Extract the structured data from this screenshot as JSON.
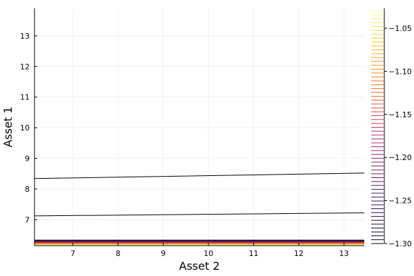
{
  "chart_data": {
    "type": "contour",
    "title": "",
    "xlabel": "Asset 2",
    "ylabel": "Asset 1",
    "xlim": [
      6.15,
      13.45
    ],
    "ylim": [
      6.15,
      13.9
    ],
    "xticks": [
      7,
      8,
      9,
      10,
      11,
      12,
      13
    ],
    "yticks": [
      7,
      8,
      9,
      10,
      11,
      12,
      13
    ],
    "grid": true,
    "colormap": "inferno",
    "colorbar": {
      "range": [
        -1.3,
        -1.03
      ],
      "ticks": [
        -1.05,
        -1.1,
        -1.15,
        -1.2,
        -1.25,
        -1.3
      ],
      "tick_labels": [
        "−1.05",
        "−1.10",
        "−1.15",
        "−1.20",
        "−1.25",
        "−1.30"
      ]
    },
    "contour_lines": [
      {
        "level": -1.3,
        "points": [
          [
            6.15,
            8.34
          ],
          [
            13.45,
            8.52
          ]
        ],
        "color": "#000000"
      },
      {
        "level": -1.3,
        "points": [
          [
            6.15,
            7.12
          ],
          [
            13.45,
            7.22
          ]
        ],
        "color": "#000000"
      }
    ],
    "bottom_band_colors": [
      "#000004",
      "#280b54",
      "#65156e",
      "#9f2a63",
      "#d44842",
      "#f57d15",
      "#fac228",
      "#fcffa4"
    ]
  }
}
